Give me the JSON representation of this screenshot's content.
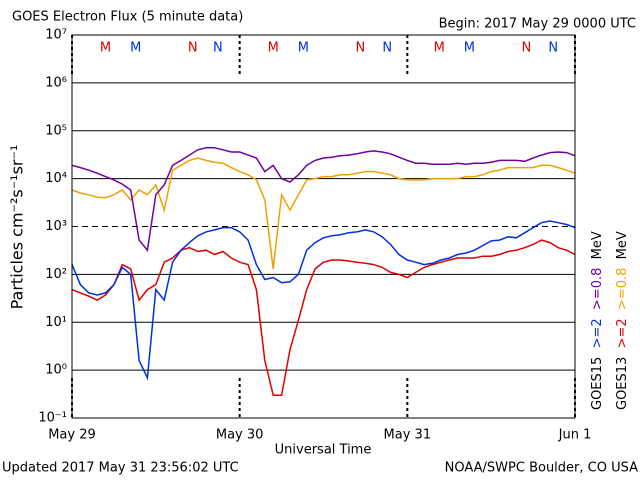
{
  "chart_data": {
    "type": "line",
    "title": "GOES Electron Flux (5 minute data)",
    "subtitle": "Begin: 2017 May 29 0000 UTC",
    "ylabel": "Particles cm⁻²s⁻¹sr⁻¹",
    "xlabel": "Universal Time",
    "footer_left": "Updated 2017 May 31 23:56:02 UTC",
    "footer_right": "NOAA/SWPC Boulder, CO USA",
    "log_y": true,
    "grid": true,
    "threshold": 1000,
    "xlim": [
      0,
      3
    ],
    "xticks": [
      {
        "value": 0,
        "label": "May 29"
      },
      {
        "value": 1,
        "label": "May 30"
      },
      {
        "value": 2,
        "label": "May 31"
      },
      {
        "value": 3,
        "label": "Jun 1"
      }
    ],
    "ylim": [
      0.1,
      10000000
    ],
    "yticks": [
      {
        "value": 0.1,
        "label": "10⁻¹"
      },
      {
        "value": 1,
        "label": "10⁰"
      },
      {
        "value": 10,
        "label": "10¹"
      },
      {
        "value": 100,
        "label": "10²"
      },
      {
        "value": 1000,
        "label": "10³"
      },
      {
        "value": 10000,
        "label": "10⁴"
      },
      {
        "value": 100000,
        "label": "10⁵"
      },
      {
        "value": 1000000,
        "label": "10⁶"
      },
      {
        "value": 10000000,
        "label": "10⁷"
      }
    ],
    "legend_position": "right",
    "legend_groups": [
      {
        "name": "GOES15",
        "series": [
          0,
          1
        ],
        "unit": "MeV"
      },
      {
        "name": "GOES13",
        "series": [
          2,
          3
        ],
        "unit": "MeV"
      }
    ],
    "markers": [
      {
        "label": "M",
        "x": 0.2,
        "color": "#e00000"
      },
      {
        "label": "M",
        "x": 0.38,
        "color": "#0030e0"
      },
      {
        "label": "N",
        "x": 0.72,
        "color": "#e00000"
      },
      {
        "label": "N",
        "x": 0.87,
        "color": "#0030e0"
      },
      {
        "label": "M",
        "x": 1.2,
        "color": "#e00000"
      },
      {
        "label": "M",
        "x": 1.38,
        "color": "#0030e0"
      },
      {
        "label": "N",
        "x": 1.72,
        "color": "#e00000"
      },
      {
        "label": "N",
        "x": 1.88,
        "color": "#0030e0"
      },
      {
        "label": "M",
        "x": 2.19,
        "color": "#e00000"
      },
      {
        "label": "M",
        "x": 2.37,
        "color": "#0030e0"
      },
      {
        "label": "N",
        "x": 2.71,
        "color": "#e00000"
      },
      {
        "label": "N",
        "x": 2.87,
        "color": "#0030e0"
      }
    ],
    "x": [
      0,
      0.05,
      0.1,
      0.15,
      0.2,
      0.25,
      0.3,
      0.35,
      0.4,
      0.45,
      0.5,
      0.55,
      0.6,
      0.65,
      0.7,
      0.75,
      0.8,
      0.85,
      0.9,
      0.95,
      1,
      1.05,
      1.1,
      1.15,
      1.2,
      1.25,
      1.3,
      1.35,
      1.4,
      1.45,
      1.5,
      1.55,
      1.6,
      1.65,
      1.7,
      1.75,
      1.8,
      1.85,
      1.9,
      1.95,
      2,
      2.05,
      2.1,
      2.15,
      2.2,
      2.25,
      2.3,
      2.35,
      2.4,
      2.45,
      2.5,
      2.55,
      2.6,
      2.65,
      2.7,
      2.75,
      2.8,
      2.85,
      2.9,
      2.95,
      3
    ],
    "series": [
      {
        "name": ">=2",
        "color": "#0030e0",
        "values": [
          160,
          61,
          41,
          37,
          41,
          61,
          140,
          100,
          1.6,
          0.69,
          48,
          29,
          180,
          320,
          460,
          640,
          770,
          850,
          950,
          950,
          770,
          520,
          160,
          78,
          86,
          67,
          70,
          100,
          320,
          460,
          580,
          640,
          670,
          740,
          770,
          850,
          770,
          610,
          420,
          260,
          200,
          180,
          160,
          170,
          200,
          220,
          260,
          280,
          320,
          400,
          500,
          520,
          610,
          580,
          740,
          950,
          1200,
          1300,
          1200,
          1100,
          950
        ]
      },
      {
        "name": ">=0.8",
        "color": "#7000a0",
        "values": [
          19000,
          17000,
          15000,
          13000,
          11000,
          9400,
          7700,
          5800,
          520,
          320,
          4600,
          7400,
          19000,
          24000,
          31000,
          40000,
          44000,
          44000,
          40000,
          36000,
          36000,
          31000,
          27000,
          14000,
          19000,
          10000,
          8500,
          12000,
          19000,
          24000,
          27000,
          28000,
          30000,
          31000,
          33000,
          36000,
          38000,
          36000,
          33000,
          28000,
          24000,
          21000,
          21000,
          20000,
          20000,
          20000,
          21000,
          20000,
          21000,
          21000,
          22000,
          24000,
          24000,
          24000,
          23000,
          27000,
          31000,
          35000,
          36000,
          35000,
          30000
        ]
      },
      {
        "name": ">=2",
        "color": "#e00000",
        "values": [
          48,
          41,
          35,
          29,
          37,
          61,
          160,
          130,
          29,
          48,
          61,
          180,
          220,
          320,
          360,
          300,
          320,
          260,
          300,
          220,
          180,
          160,
          48,
          1.6,
          0.3,
          0.3,
          2.7,
          11,
          48,
          130,
          180,
          200,
          200,
          190,
          180,
          170,
          160,
          140,
          110,
          100,
          86,
          110,
          140,
          160,
          180,
          200,
          220,
          220,
          220,
          240,
          240,
          260,
          300,
          320,
          360,
          420,
          520,
          460,
          360,
          320,
          260
        ]
      },
      {
        "name": ">=0.8",
        "color": "#f0a000",
        "values": [
          5800,
          5000,
          4600,
          4100,
          4000,
          4600,
          5800,
          3600,
          5800,
          4600,
          7400,
          2200,
          15000,
          19000,
          24000,
          27000,
          24000,
          22000,
          21000,
          17000,
          14000,
          12000,
          9400,
          3600,
          130,
          4600,
          2200,
          4600,
          9400,
          10000,
          11000,
          11000,
          12000,
          12000,
          13000,
          14000,
          14000,
          13000,
          12000,
          10000,
          9400,
          9400,
          9400,
          10000,
          10000,
          10000,
          10000,
          11000,
          11000,
          12000,
          14000,
          15000,
          17000,
          17000,
          17000,
          17000,
          19000,
          19000,
          17000,
          15000,
          13000
        ]
      }
    ]
  }
}
